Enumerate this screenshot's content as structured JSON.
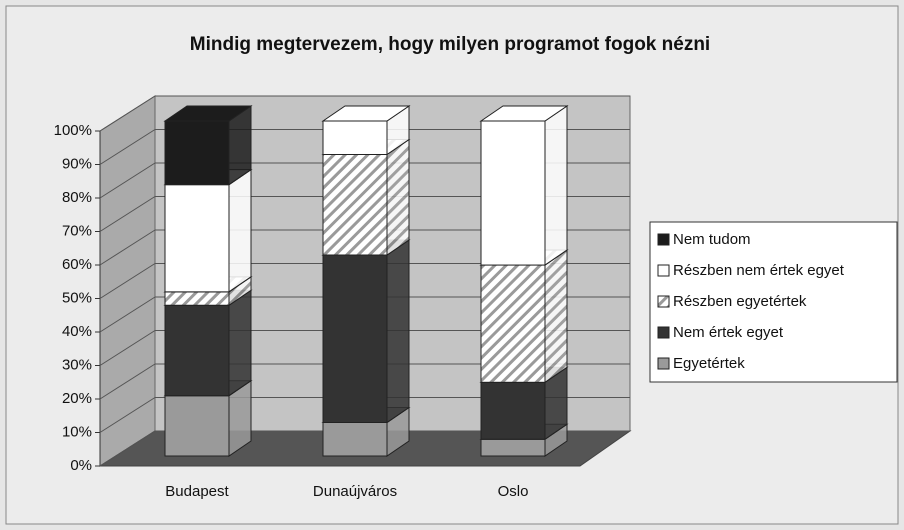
{
  "chart_data": {
    "type": "stacked_bar_3d",
    "title": "Mindig megtervezem, hogy milyen programot fogok nézni",
    "categories": [
      "Budapest",
      "Dunaújváros",
      "Oslo"
    ],
    "series": [
      {
        "name": "Egyetértek",
        "color": "#9a9a9a",
        "values": [
          18,
          10,
          5
        ]
      },
      {
        "name": "Nem értek egyet",
        "color": "#333333",
        "values": [
          27,
          50,
          17
        ]
      },
      {
        "name": "Részben egyetértek",
        "color": "#ffffff",
        "hatch": true,
        "values": [
          4,
          30,
          35
        ]
      },
      {
        "name": "Részben nem értek egyet",
        "color": "#ffffff",
        "values": [
          32,
          10,
          43
        ]
      },
      {
        "name": "Nem tudom",
        "color": "#1c1c1c",
        "values": [
          19,
          0,
          0
        ]
      }
    ],
    "ylim": [
      0,
      100
    ],
    "yticks": [
      {
        "value": 0,
        "label": "0%"
      },
      {
        "value": 10,
        "label": "10%"
      },
      {
        "value": 20,
        "label": "20%"
      },
      {
        "value": 30,
        "label": "30%"
      },
      {
        "value": 40,
        "label": "40%"
      },
      {
        "value": 50,
        "label": "50%"
      },
      {
        "value": 60,
        "label": "60%"
      },
      {
        "value": 70,
        "label": "70%"
      },
      {
        "value": 80,
        "label": "80%"
      },
      {
        "value": 90,
        "label": "90%"
      },
      {
        "value": 100,
        "label": "100%"
      }
    ],
    "grid": true,
    "legend": "right"
  }
}
